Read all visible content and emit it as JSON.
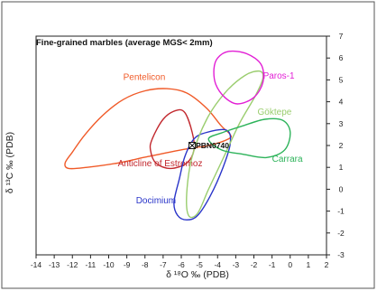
{
  "chart_data": {
    "type": "scatter",
    "title": "Fine-grained marbles (average MGS< 2mm)",
    "xlabel": "δ ¹⁸O ‰ (PDB)",
    "ylabel": "δ ¹³C ‰ (PDB)",
    "xlim": [
      -14,
      2
    ],
    "ylim": [
      -3,
      7
    ],
    "xticks": [
      -14,
      -13,
      -12,
      -11,
      -10,
      -9,
      -8,
      -7,
      -6,
      -5,
      -4,
      -3,
      -2,
      -1,
      0,
      1,
      2
    ],
    "yticks": [
      -3,
      -2,
      -1,
      0,
      1,
      2,
      3,
      4,
      5,
      6,
      7
    ],
    "y_axis_position": "right",
    "grid": false,
    "regions": [
      {
        "name": "Pentelicon",
        "color": "#f05a28",
        "label_at": [
          -9.2,
          5.0
        ],
        "points": [
          [
            -12.4,
            1.2
          ],
          [
            -12.0,
            1.7
          ],
          [
            -11.3,
            2.5
          ],
          [
            -10.3,
            3.4
          ],
          [
            -9.2,
            4.1
          ],
          [
            -8.0,
            4.5
          ],
          [
            -6.8,
            4.6
          ],
          [
            -5.7,
            4.4
          ],
          [
            -4.6,
            3.7
          ],
          [
            -3.8,
            2.9
          ],
          [
            -3.3,
            2.5
          ],
          [
            -3.4,
            2.3
          ],
          [
            -4.5,
            2.0
          ],
          [
            -6.0,
            1.8
          ],
          [
            -7.8,
            1.5
          ],
          [
            -9.5,
            1.2
          ],
          [
            -11.2,
            1.0
          ],
          [
            -12.2,
            0.95
          ]
        ]
      },
      {
        "name": "Anticline of Estremoz",
        "color": "#c2282e",
        "label_at": [
          -9.5,
          1.05
        ],
        "points": [
          [
            -7.6,
            2.3
          ],
          [
            -7.0,
            3.2
          ],
          [
            -6.3,
            3.6
          ],
          [
            -5.8,
            3.5
          ],
          [
            -5.4,
            2.6
          ],
          [
            -5.3,
            1.8
          ],
          [
            -5.7,
            1.2
          ],
          [
            -6.6,
            0.95
          ],
          [
            -7.4,
            1.2
          ],
          [
            -7.7,
            1.8
          ]
        ]
      },
      {
        "name": "Docimium",
        "color": "#2a35c9",
        "label_at": [
          -8.5,
          -0.65
        ],
        "points": [
          [
            -6.4,
            -0.6
          ],
          [
            -6.1,
            0.5
          ],
          [
            -5.8,
            1.5
          ],
          [
            -5.3,
            2.3
          ],
          [
            -4.6,
            2.6
          ],
          [
            -3.5,
            2.7
          ],
          [
            -3.3,
            2.1
          ],
          [
            -3.7,
            1.0
          ],
          [
            -4.4,
            -0.3
          ],
          [
            -5.1,
            -1.2
          ],
          [
            -5.7,
            -1.4
          ],
          [
            -6.2,
            -1.2
          ]
        ]
      },
      {
        "name": "Göktepe",
        "color": "#9acd6e",
        "label_at": [
          -1.8,
          3.4
        ],
        "points": [
          [
            -5.6,
            -1.2
          ],
          [
            -5.7,
            -0.2
          ],
          [
            -5.4,
            1.5
          ],
          [
            -4.6,
            3.2
          ],
          [
            -3.6,
            4.4
          ],
          [
            -2.5,
            5.2
          ],
          [
            -1.7,
            5.4
          ],
          [
            -1.5,
            5.1
          ],
          [
            -1.9,
            4.3
          ],
          [
            -2.8,
            3.0
          ],
          [
            -3.7,
            1.4
          ],
          [
            -4.5,
            0.0
          ],
          [
            -5.1,
            -1.1
          ]
        ]
      },
      {
        "name": "Paros-1",
        "color": "#e21fd5",
        "label_at": [
          -1.5,
          5.05
        ],
        "points": [
          [
            -4.2,
            5.5
          ],
          [
            -4.0,
            6.0
          ],
          [
            -3.4,
            6.3
          ],
          [
            -2.4,
            6.2
          ],
          [
            -1.6,
            5.7
          ],
          [
            -1.5,
            4.9
          ],
          [
            -2.0,
            4.2
          ],
          [
            -2.9,
            3.9
          ],
          [
            -3.6,
            4.2
          ],
          [
            -4.1,
            4.8
          ]
        ]
      },
      {
        "name": "Carrara",
        "color": "#2db35a",
        "label_at": [
          -1.0,
          1.25
        ],
        "points": [
          [
            -4.5,
            2.3
          ],
          [
            -3.7,
            2.6
          ],
          [
            -2.6,
            2.9
          ],
          [
            -1.4,
            3.2
          ],
          [
            -0.4,
            3.15
          ],
          [
            0.0,
            2.6
          ],
          [
            -0.3,
            1.8
          ],
          [
            -1.3,
            1.45
          ],
          [
            -2.6,
            1.6
          ],
          [
            -3.8,
            1.8
          ]
        ]
      }
    ],
    "samples": [
      {
        "name": "PBN0740",
        "x": -5.4,
        "y": 2.0
      }
    ]
  },
  "colors": {
    "axis": "#222222",
    "frame": "#555555",
    "background": "#ffffff"
  }
}
